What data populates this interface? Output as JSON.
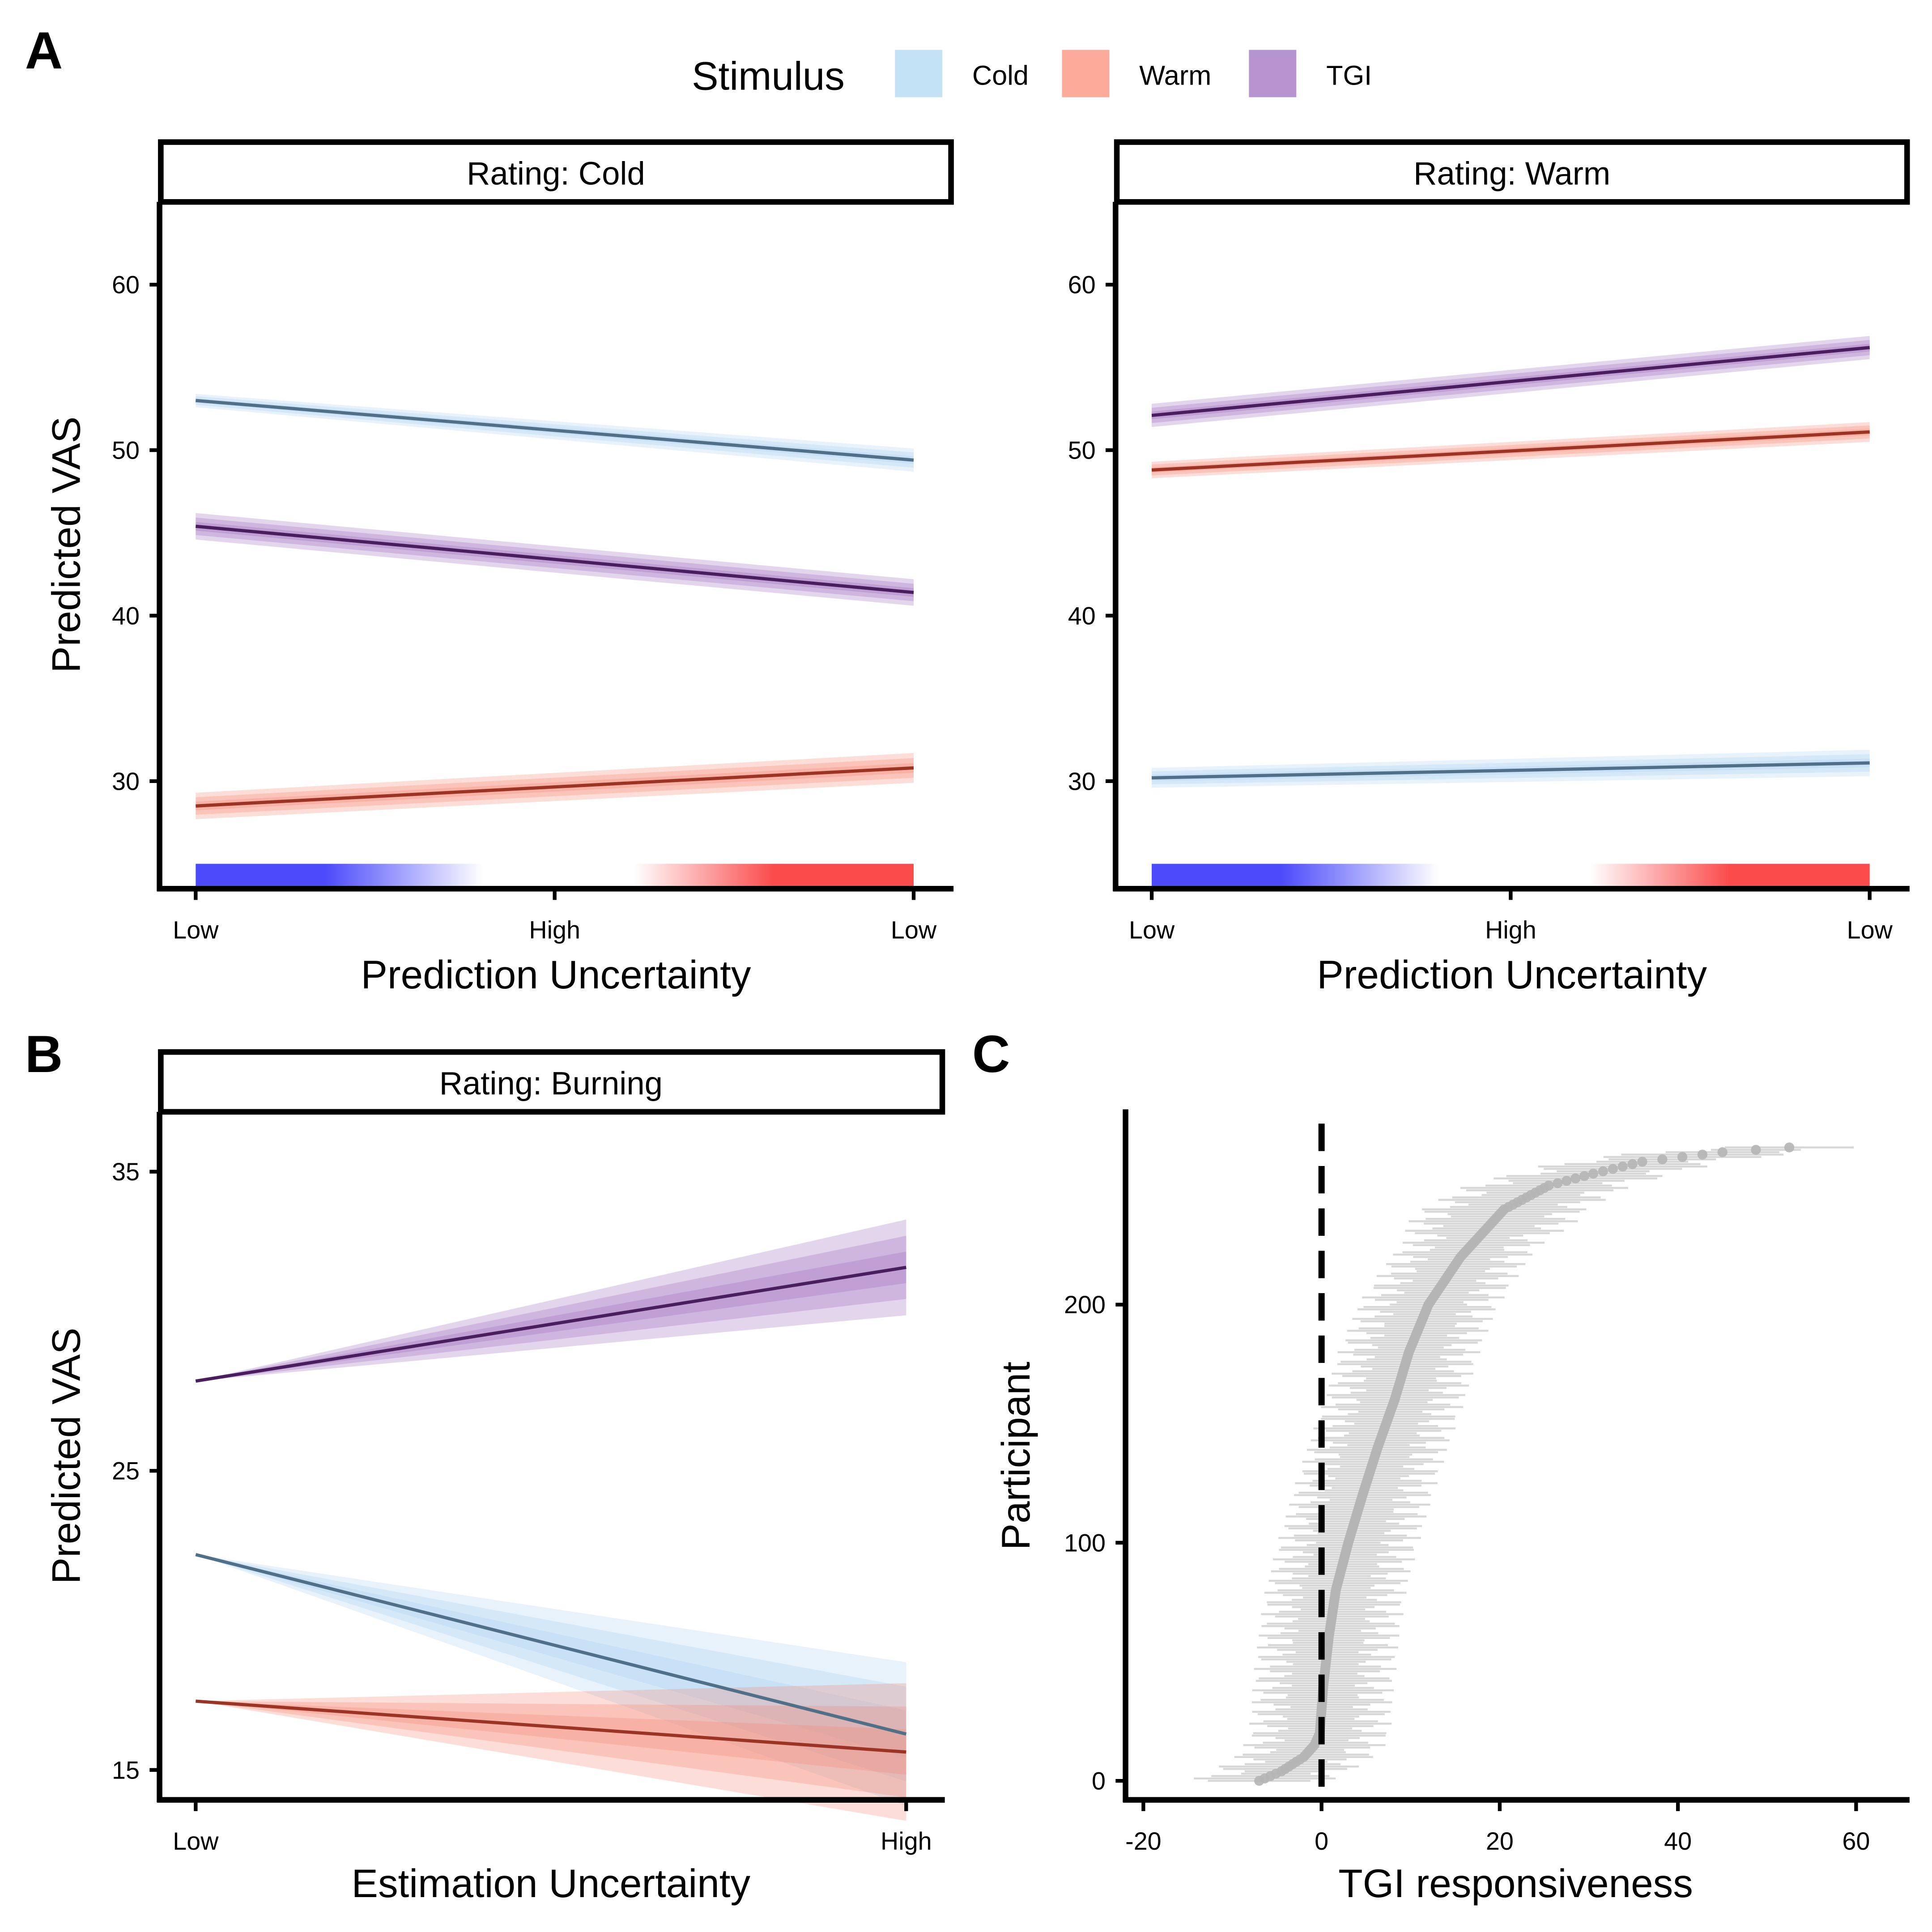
{
  "figure": {
    "panel_labels": [
      "A",
      "B",
      "C"
    ]
  },
  "legend": {
    "title": "Stimulus",
    "items": [
      {
        "label": "Cold",
        "color": "#c3e2f5"
      },
      {
        "label": "Warm",
        "color": "#fcaa9a"
      },
      {
        "label": "TGI",
        "color": "#b594cf"
      }
    ]
  },
  "colors": {
    "cold_line": "#4f7088",
    "warm_line": "#9b3424",
    "tgi_line": "#4a1d5e",
    "cold_band": "#a8d2ef",
    "warm_band": "#f4846f",
    "tgi_band": "#9b67bb",
    "gradient_blue": "#4b4bfb",
    "gradient_red": "#fb4b4b",
    "points": "#b5b5b5",
    "whiskers": "#d0d0d0"
  },
  "chart_data": [
    {
      "id": "A-cold",
      "type": "line",
      "strip": "Rating: Cold",
      "ylabel": "Predicted VAS",
      "xlabel": "Prediction Uncertainty",
      "x_ticks": [
        "Low",
        "High",
        "Low"
      ],
      "y_ticks": [
        30,
        40,
        50,
        60
      ],
      "ylim": [
        23.5,
        65
      ],
      "x": [
        0,
        1
      ],
      "series": [
        {
          "key": "cold",
          "values": [
            53.0,
            49.4
          ],
          "band_half_widths": [
            0.4,
            0.7
          ]
        },
        {
          "key": "tgi",
          "values": [
            45.4,
            41.4
          ],
          "band_half_widths": [
            0.8,
            0.8
          ]
        },
        {
          "key": "warm",
          "values": [
            28.5,
            30.8
          ],
          "band_half_widths": [
            0.8,
            0.9
          ]
        }
      ],
      "gradient_bar": true
    },
    {
      "id": "A-warm",
      "type": "line",
      "strip": "Rating: Warm",
      "xlabel": "Prediction Uncertainty",
      "x_ticks": [
        "Low",
        "High",
        "Low"
      ],
      "y_ticks": [
        30,
        40,
        50,
        60
      ],
      "ylim": [
        23.5,
        65
      ],
      "x": [
        0,
        1
      ],
      "series": [
        {
          "key": "tgi",
          "values": [
            52.1,
            56.2
          ],
          "band_half_widths": [
            0.7,
            0.7
          ]
        },
        {
          "key": "warm",
          "values": [
            48.8,
            51.1
          ],
          "band_half_widths": [
            0.5,
            0.6
          ]
        },
        {
          "key": "cold",
          "values": [
            30.2,
            31.1
          ],
          "band_half_widths": [
            0.6,
            0.8
          ]
        }
      ],
      "gradient_bar": true
    },
    {
      "id": "B",
      "type": "line",
      "strip": "Rating: Burning",
      "ylabel": "Predicted VAS",
      "xlabel": "Estimation Uncertainty",
      "x_ticks": [
        "Low",
        "High"
      ],
      "y_ticks": [
        15,
        25,
        35
      ],
      "ylim": [
        14,
        37
      ],
      "x": [
        0,
        1
      ],
      "series": [
        {
          "key": "tgi",
          "values": [
            28.0,
            31.8
          ],
          "band_half_widths": [
            0,
            1.6
          ]
        },
        {
          "key": "cold",
          "values": [
            22.2,
            16.2
          ],
          "band_half_widths": [
            0,
            2.4
          ]
        },
        {
          "key": "warm",
          "values": [
            17.3,
            15.6
          ],
          "band_half_widths": [
            0,
            2.3
          ]
        }
      ]
    },
    {
      "id": "C",
      "type": "scatter",
      "ylabel": "Participant",
      "xlabel": "TGI responsiveness",
      "x_ticks": [
        -20,
        0,
        20,
        40,
        60
      ],
      "y_ticks": [
        0,
        100,
        200
      ],
      "xlim": [
        -22,
        66
      ],
      "ylim": [
        -8,
        282
      ],
      "reference_x": 0,
      "n_participants": 267,
      "quantiles": [
        [
          0,
          -7
        ],
        [
          4,
          -4.5
        ],
        [
          10,
          -2
        ],
        [
          15,
          -0.8
        ],
        [
          20,
          -0.2
        ],
        [
          40,
          0.2
        ],
        [
          60,
          0.8
        ],
        [
          80,
          1.6
        ],
        [
          100,
          3.0
        ],
        [
          120,
          4.6
        ],
        [
          140,
          6.3
        ],
        [
          160,
          8.2
        ],
        [
          180,
          9.8
        ],
        [
          200,
          12.0
        ],
        [
          220,
          15.6
        ],
        [
          240,
          20.5
        ],
        [
          250,
          25.5
        ],
        [
          255,
          30.5
        ],
        [
          260,
          36
        ],
        [
          264,
          45
        ],
        [
          266,
          52.5
        ]
      ]
    }
  ]
}
